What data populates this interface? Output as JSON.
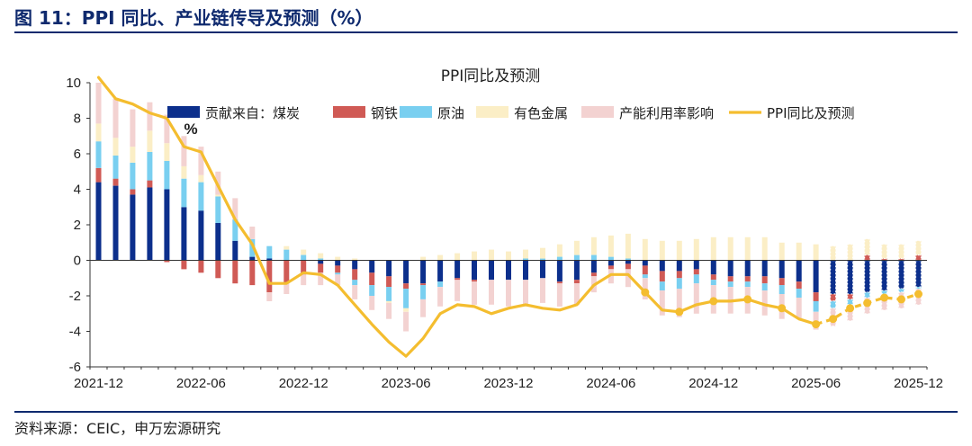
{
  "figure": {
    "title": "图 11：PPI 同比、产业链传导及预测（%）",
    "source": "资料来源：CEIC，申万宏源研究"
  },
  "chart_data": {
    "type": "bar",
    "title": "PPI同比及预测",
    "unit_label": "%",
    "ylim": [
      -6,
      10
    ],
    "yticks": [
      10,
      8,
      6,
      4,
      2,
      0,
      -2,
      -4,
      -6
    ],
    "xtick_labels": [
      "2021-12",
      "2022-06",
      "2022-12",
      "2023-06",
      "2023-12",
      "2024-06",
      "2024-12",
      "2025-06",
      "2025-12"
    ],
    "xtick_index": [
      0,
      6,
      12,
      18,
      24,
      30,
      36,
      42,
      48
    ],
    "categories": [
      "2021-12",
      "2022-01",
      "2022-02",
      "2022-03",
      "2022-04",
      "2022-05",
      "2022-06",
      "2022-07",
      "2022-08",
      "2022-09",
      "2022-10",
      "2022-11",
      "2022-12",
      "2023-01",
      "2023-02",
      "2023-03",
      "2023-04",
      "2023-05",
      "2023-06",
      "2023-07",
      "2023-08",
      "2023-09",
      "2023-10",
      "2023-11",
      "2023-12",
      "2024-01",
      "2024-02",
      "2024-03",
      "2024-04",
      "2024-05",
      "2024-06",
      "2024-07",
      "2024-08",
      "2024-09",
      "2024-10",
      "2024-11",
      "2024-12",
      "2025-01",
      "2025-02",
      "2025-03",
      "2025-04",
      "2025-05",
      "2025-06",
      "2025-07",
      "2025-08",
      "2025-09",
      "2025-10",
      "2025-11",
      "2025-12"
    ],
    "forecast_start_index": 43,
    "grid": false,
    "legend_position": "top",
    "series": [
      {
        "name": "贡献来自：煤炭",
        "color": "#0c2f8c",
        "values": [
          4.4,
          4.2,
          3.7,
          4.1,
          4.0,
          3.0,
          2.8,
          2.1,
          1.1,
          0.2,
          0.1,
          0.0,
          0.0,
          -0.2,
          -0.3,
          -0.5,
          -0.7,
          -0.9,
          -1.3,
          -1.3,
          -1.2,
          -1.0,
          -1.1,
          -1.1,
          -1.1,
          -1.1,
          -1.0,
          -1.2,
          -1.1,
          -0.7,
          -0.3,
          -0.2,
          -0.3,
          -0.6,
          -0.6,
          -0.5,
          -0.8,
          -0.9,
          -0.9,
          -0.9,
          -1.0,
          -1.2,
          -1.8,
          -1.9,
          -1.9,
          -1.8,
          -1.7,
          -1.6,
          -1.5
        ]
      },
      {
        "name": "钢铁",
        "color": "#d05a55",
        "values": [
          0.8,
          0.4,
          0.3,
          0.4,
          -0.1,
          -0.5,
          -0.7,
          -1.0,
          -1.3,
          -1.4,
          -1.8,
          -1.3,
          -0.8,
          -0.5,
          -0.4,
          -0.6,
          -0.7,
          -0.6,
          -0.3,
          -0.1,
          0.0,
          -0.1,
          -0.1,
          0.0,
          0.0,
          0.0,
          0.0,
          -0.1,
          -0.2,
          -0.2,
          -0.2,
          -0.3,
          -0.5,
          -0.6,
          -0.4,
          -0.3,
          -0.3,
          -0.3,
          -0.3,
          -0.4,
          -0.4,
          -0.4,
          -0.5,
          -0.4,
          -0.3,
          0.3,
          0.1,
          0.1,
          0.3
        ]
      },
      {
        "name": "原油",
        "color": "#79cff0",
        "values": [
          1.5,
          1.3,
          1.5,
          1.6,
          1.6,
          1.6,
          1.6,
          1.5,
          1.2,
          1.0,
          0.7,
          0.6,
          0.3,
          0.1,
          -0.1,
          -0.3,
          -0.6,
          -0.8,
          -1.1,
          -0.8,
          -0.3,
          0.0,
          0.0,
          0.0,
          0.0,
          0.1,
          0.1,
          0.2,
          0.3,
          0.3,
          0.2,
          0.1,
          -0.2,
          -0.5,
          -0.6,
          -0.5,
          -0.3,
          -0.3,
          -0.3,
          -0.4,
          -0.5,
          -0.5,
          -0.6,
          -0.4,
          -0.3,
          -0.3,
          -0.2,
          -0.2,
          -0.1
        ]
      },
      {
        "name": "有色金属",
        "color": "#fbeec6",
        "values": [
          1.0,
          1.0,
          0.9,
          1.2,
          1.0,
          0.7,
          0.4,
          0.1,
          0.0,
          0.0,
          0.0,
          0.2,
          0.3,
          0.3,
          0.2,
          0.1,
          0.0,
          -0.1,
          -0.2,
          0.2,
          0.3,
          0.4,
          0.5,
          0.6,
          0.5,
          0.5,
          0.6,
          0.7,
          0.8,
          1.0,
          1.2,
          1.4,
          1.2,
          1.1,
          1.1,
          1.2,
          1.3,
          1.3,
          1.3,
          1.3,
          1.0,
          1.0,
          0.9,
          0.8,
          0.9,
          0.9,
          0.8,
          0.8,
          0.8
        ]
      },
      {
        "name": "产能利用率影响",
        "color": "#f3d2d1",
        "values": [
          2.3,
          2.2,
          2.1,
          1.6,
          1.6,
          1.7,
          1.6,
          1.3,
          1.2,
          0.7,
          -0.5,
          -0.6,
          -0.6,
          -0.7,
          -0.6,
          -0.8,
          -0.8,
          -0.9,
          -1.1,
          -1.0,
          -1.1,
          -1.2,
          -1.3,
          -1.4,
          -1.5,
          -1.5,
          -1.4,
          -1.3,
          -1.2,
          -0.9,
          -0.8,
          -1.0,
          -1.2,
          -1.4,
          -1.6,
          -1.7,
          -1.6,
          -1.5,
          -1.5,
          -1.4,
          -1.4,
          -1.2,
          -1.0,
          -1.0,
          -0.9,
          -0.9,
          -0.9,
          -0.9,
          -0.9
        ]
      },
      {
        "name": "PPI同比及预测",
        "color": "#f4bd2f",
        "values": [
          10.3,
          9.1,
          8.8,
          8.3,
          8.0,
          6.4,
          6.1,
          4.2,
          2.3,
          0.9,
          -1.3,
          -1.3,
          -0.7,
          -0.8,
          -1.4,
          -2.5,
          -3.6,
          -4.6,
          -5.4,
          -4.4,
          -3.0,
          -2.5,
          -2.6,
          -3.0,
          -2.7,
          -2.5,
          -2.7,
          -2.8,
          -2.5,
          -1.4,
          -0.8,
          -0.8,
          -1.8,
          -2.8,
          -2.9,
          -2.5,
          -2.3,
          -2.3,
          -2.2,
          -2.5,
          -2.7,
          -3.3,
          -3.6,
          -3.3,
          -2.7,
          -2.4,
          -2.1,
          -2.2,
          -1.9
        ]
      }
    ]
  }
}
